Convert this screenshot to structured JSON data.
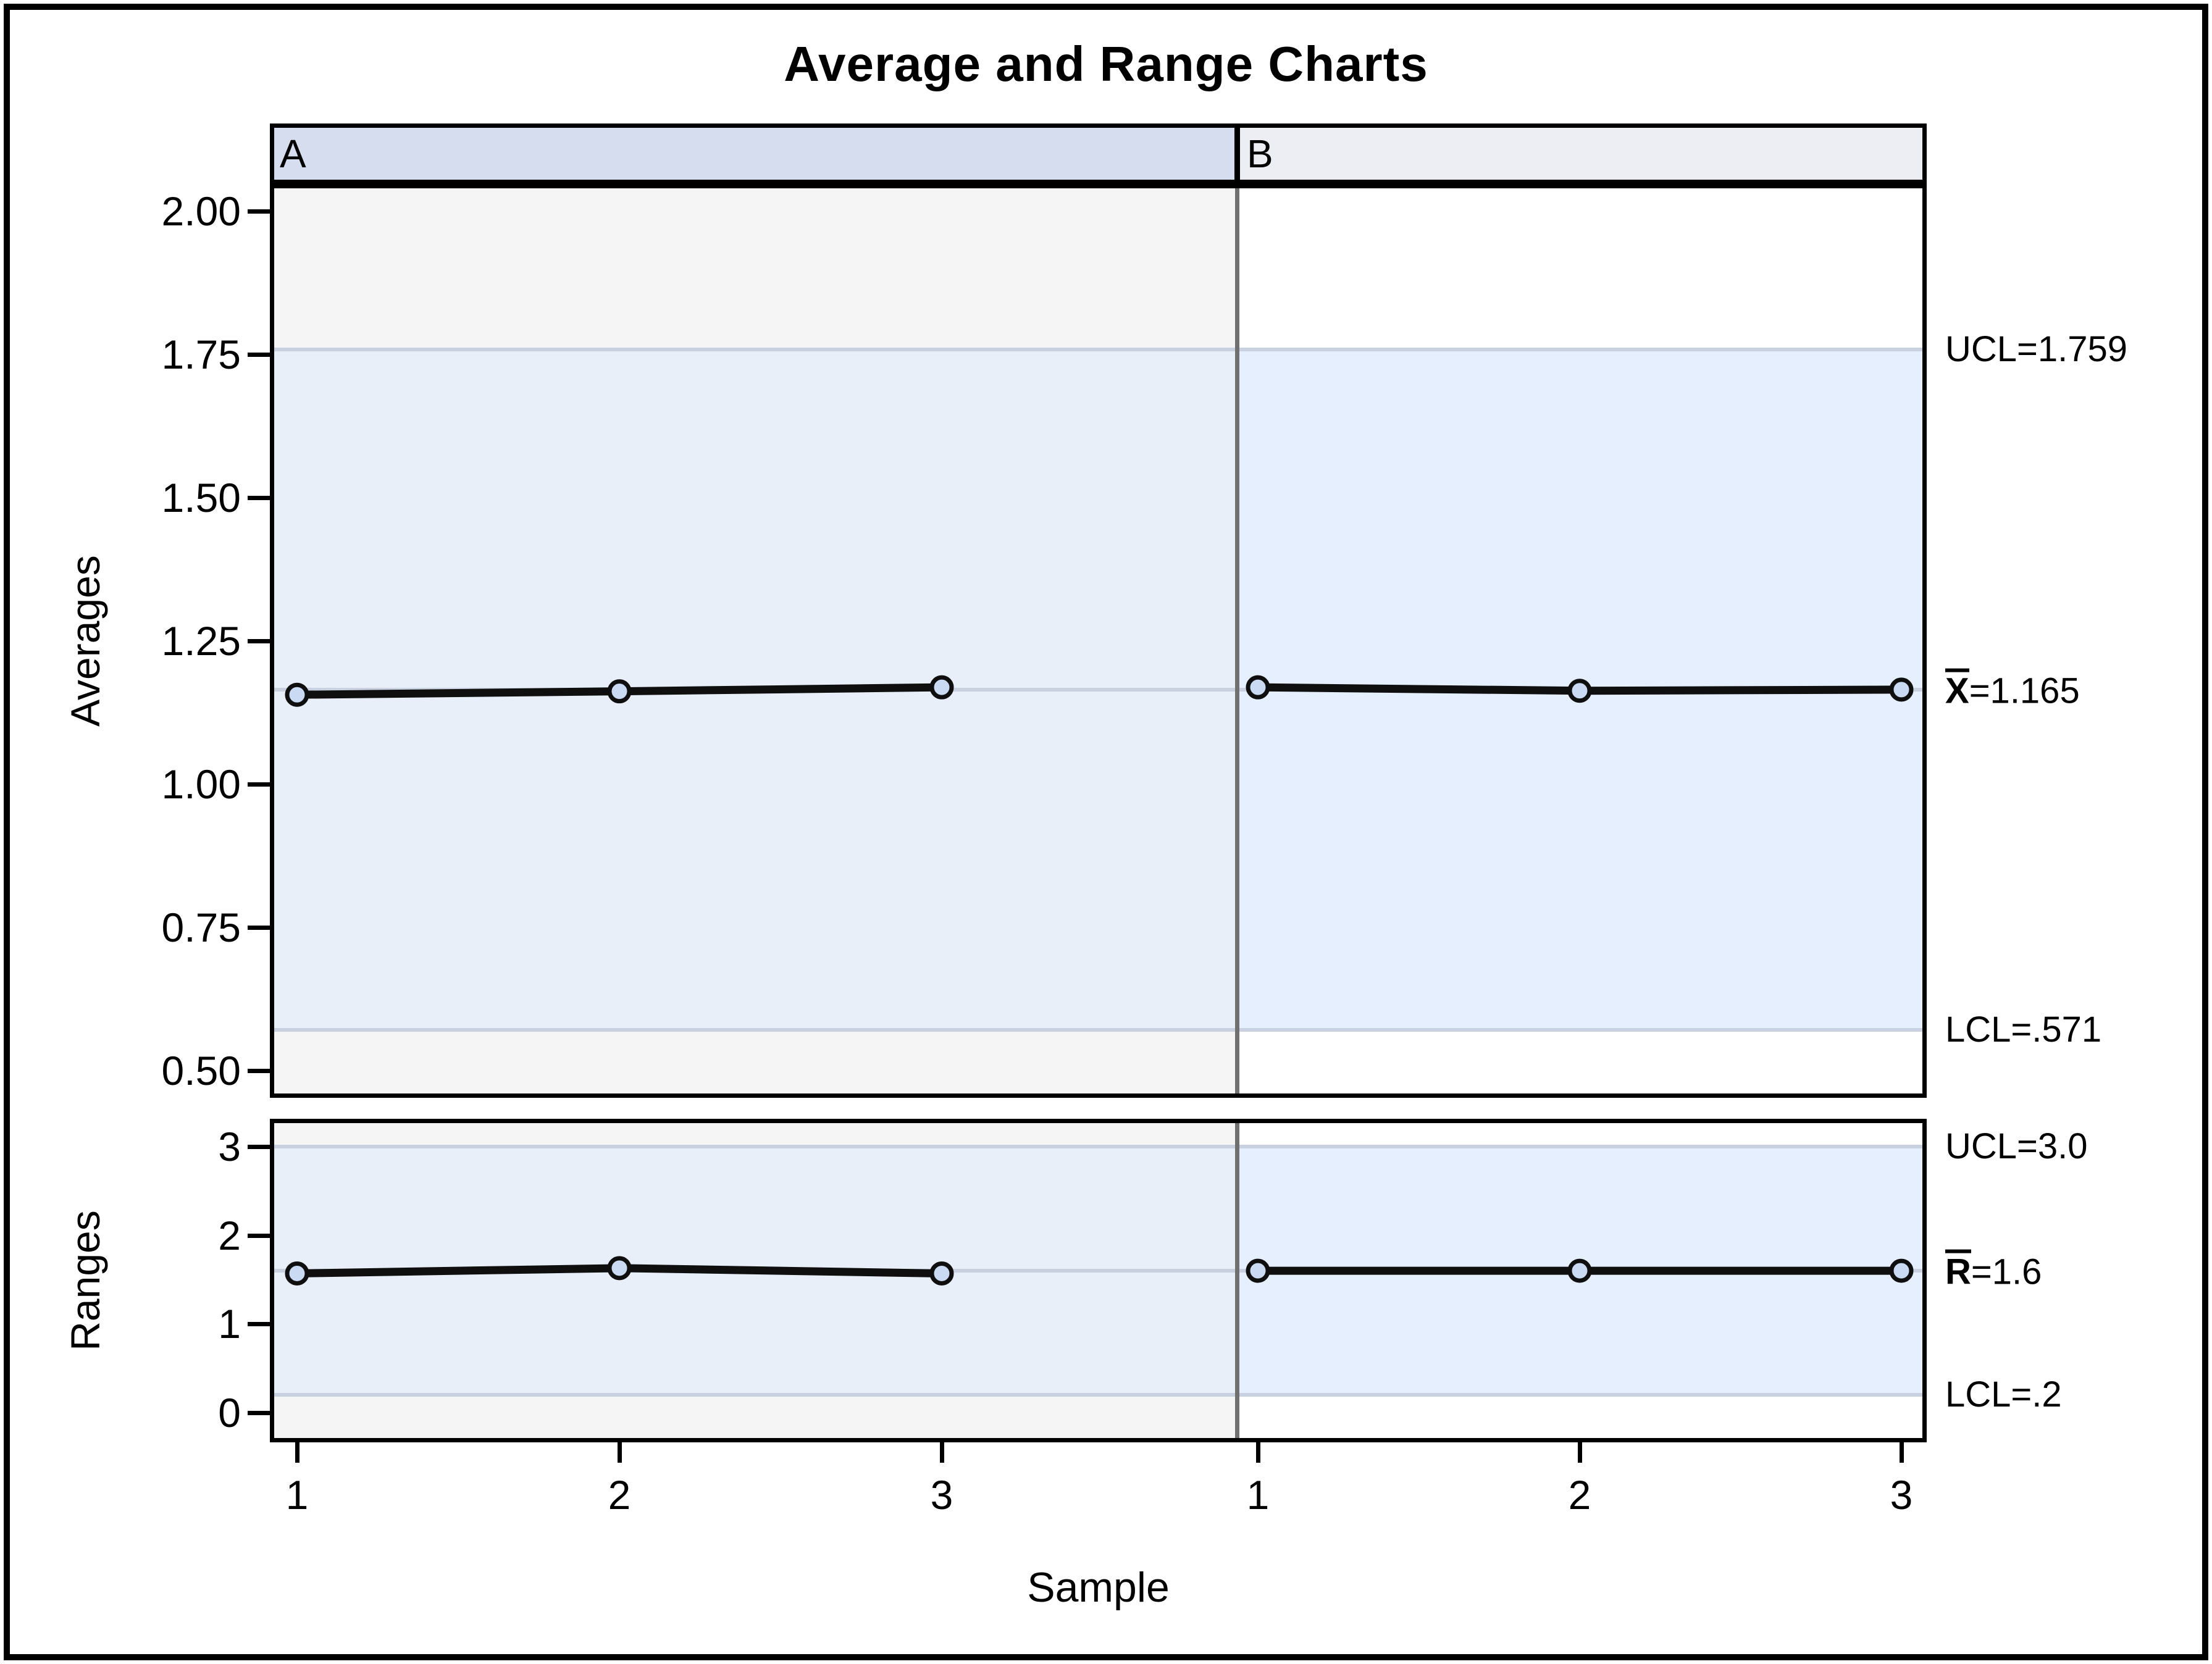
{
  "figure": {
    "title": "Average and Range Charts",
    "x_axis_label": "Sample"
  },
  "panels": [
    {
      "label": "A"
    },
    {
      "label": "B"
    }
  ],
  "colors": {
    "panel_a_header_bg": "#d6ddee",
    "panel_b_header_bg": "#ededf4",
    "panel_a_plot_bg": "#f5f5f5",
    "panel_b_plot_bg": "#ffffff",
    "panel_a_band": "#e8eff9",
    "panel_b_band": "#e6effe",
    "limit_line": "#c9d1e0",
    "divider_line": "#707070",
    "frame": "#000000",
    "series_line": "#0f0f0f",
    "marker_fill": "#c9daf2",
    "text": "#000000"
  },
  "chart_data": [
    {
      "type": "line",
      "name": "averages",
      "title": "",
      "ylabel": "Averages",
      "xlabel": "Sample",
      "grid": false,
      "legend": "none",
      "ylim": [
        0.45,
        2.05
      ],
      "yticks": [
        2.0,
        1.75,
        1.5,
        1.25,
        1.0,
        0.75,
        0.5
      ],
      "ytick_labels": [
        "2.00",
        "1.75",
        "1.50",
        "1.25",
        "1.00",
        "0.75",
        "0.50"
      ],
      "upper_limit": 1.759,
      "center": 1.165,
      "lower_limit": 0.571,
      "panels": [
        {
          "panel": "A",
          "categories": [
            "1",
            "2",
            "3"
          ],
          "values": [
            1.156,
            1.162,
            1.169
          ]
        },
        {
          "panel": "B",
          "categories": [
            "1",
            "2",
            "3"
          ],
          "values": [
            1.169,
            1.163,
            1.165
          ]
        }
      ],
      "annotations": [
        {
          "bar": "",
          "text": "UCL=1.759",
          "value": 1.759
        },
        {
          "bar": "X",
          "text": "=1.165",
          "value": 1.165
        },
        {
          "bar": "",
          "text": "LCL=.571",
          "value": 0.571
        }
      ]
    },
    {
      "type": "line",
      "name": "ranges",
      "title": "",
      "ylabel": "Ranges",
      "xlabel": "Sample",
      "grid": false,
      "legend": "none",
      "ylim": [
        -0.33,
        3.31
      ],
      "yticks": [
        3,
        2,
        1,
        0
      ],
      "ytick_labels": [
        "3",
        "2",
        "1",
        "0"
      ],
      "upper_limit": 3.0,
      "center": 1.6,
      "lower_limit": 0.2,
      "panels": [
        {
          "panel": "A",
          "categories": [
            "1",
            "2",
            "3"
          ],
          "values": [
            1.57,
            1.63,
            1.57
          ]
        },
        {
          "panel": "B",
          "categories": [
            "1",
            "2",
            "3"
          ],
          "values": [
            1.6,
            1.6,
            1.6
          ]
        }
      ],
      "annotations": [
        {
          "bar": "",
          "text": "UCL=3.0",
          "value": 3.0
        },
        {
          "bar": "R",
          "text": "=1.6",
          "value": 1.6
        },
        {
          "bar": "",
          "text": "LCL=.2",
          "value": 0.2
        }
      ]
    }
  ]
}
